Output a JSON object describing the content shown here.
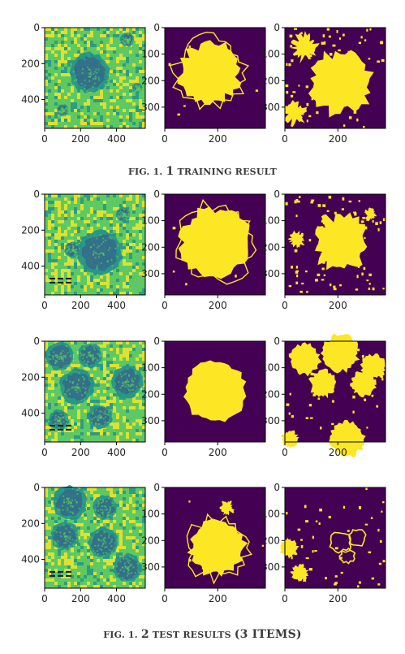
{
  "figures": [
    {
      "caption": {
        "prefix": "FIG. 1.",
        "number": "1",
        "text": "TRAINING RESULT"
      },
      "rows": [
        {
          "row_label": "training-row"
        }
      ]
    },
    {
      "caption": {
        "prefix": "FIG. 1.",
        "number": "2",
        "text": "TEST RESULTS",
        "paren": "(3 ITEMS)"
      },
      "rows": [
        {
          "row_label": "test-row-1"
        },
        {
          "row_label": "test-row-2"
        },
        {
          "row_label": "test-row-3"
        }
      ]
    }
  ],
  "panel_types": {
    "input": {
      "x_ticks": [
        "0",
        "200",
        "400"
      ],
      "x_tick_values": [
        0,
        200,
        400
      ],
      "x_range": [
        0,
        560
      ],
      "y_ticks": [
        "0",
        "200",
        "400"
      ],
      "y_tick_values": [
        0,
        200,
        400
      ],
      "y_range": [
        0,
        560
      ],
      "colormap": "viridis"
    },
    "mask": {
      "x_ticks": [
        "0",
        "200"
      ],
      "x_tick_values": [
        0,
        200
      ],
      "x_range": [
        0,
        380
      ],
      "y_ticks": [
        "0",
        "100",
        "200",
        "300"
      ],
      "y_tick_values": [
        0,
        100,
        200,
        300
      ],
      "y_range": [
        0,
        380
      ],
      "colors": {
        "background": "#440154",
        "foreground": "#fde725"
      }
    }
  },
  "colors": {
    "viridis_dark": "#3b528b",
    "viridis_teal": "#21918c",
    "viridis_green": "#5ec962",
    "viridis_yellow": "#fde725",
    "viridis_purple": "#440154"
  }
}
